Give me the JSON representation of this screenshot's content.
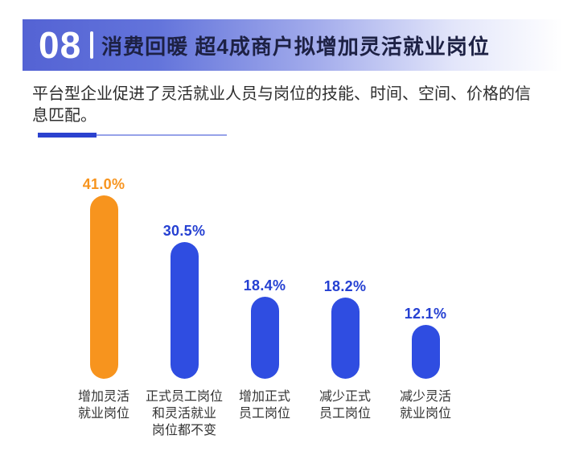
{
  "header": {
    "number": "08",
    "title": "消费回暖 超4成商户拟增加灵活就业岗位"
  },
  "intro": {
    "text": "平台型企业促进了灵活就业人员与岗位的技能、时间、空间、价格的信息匹配。"
  },
  "colors": {
    "banner_start": "#5463d4",
    "banner_end": "#ffffff",
    "title_text": "#1d2144",
    "body_text": "#2d2d2d",
    "divider_thick": "#2b42cf",
    "divider_thin": "#97a2e9",
    "bar_blue": "#2f4de1",
    "value_blue": "#2540d2",
    "bar_orange": "#f7941e",
    "value_orange": "#f7941e",
    "category_text": "#333333"
  },
  "chart_data": {
    "type": "bar",
    "title": "",
    "xlabel": "",
    "ylabel": "",
    "unit": "%",
    "ylim": [
      0,
      45
    ],
    "grid": false,
    "legend": "none",
    "categories": [
      "增加灵活就业岗位",
      "正式员工岗位和灵活就业岗位都不变",
      "增加正式员工岗位",
      "减少正式员工岗位",
      "减少灵活就业岗位"
    ],
    "category_lines": [
      [
        "增加灵活",
        "就业岗位"
      ],
      [
        "正式员工岗位",
        "和灵活就业",
        "岗位都不变"
      ],
      [
        "增加正式",
        "员工岗位"
      ],
      [
        "减少正式",
        "员工岗位"
      ],
      [
        "减少灵活",
        "就业岗位"
      ]
    ],
    "values": [
      41.0,
      30.5,
      18.4,
      18.2,
      12.1
    ],
    "value_labels": [
      "41.0%",
      "30.5%",
      "18.4%",
      "18.2%",
      "12.1%"
    ],
    "bar_colors": [
      "#f7941e",
      "#2f4de1",
      "#2f4de1",
      "#2f4de1",
      "#2f4de1"
    ],
    "value_label_colors": [
      "#f7941e",
      "#2540d2",
      "#2540d2",
      "#2540d2",
      "#2540d2"
    ]
  }
}
